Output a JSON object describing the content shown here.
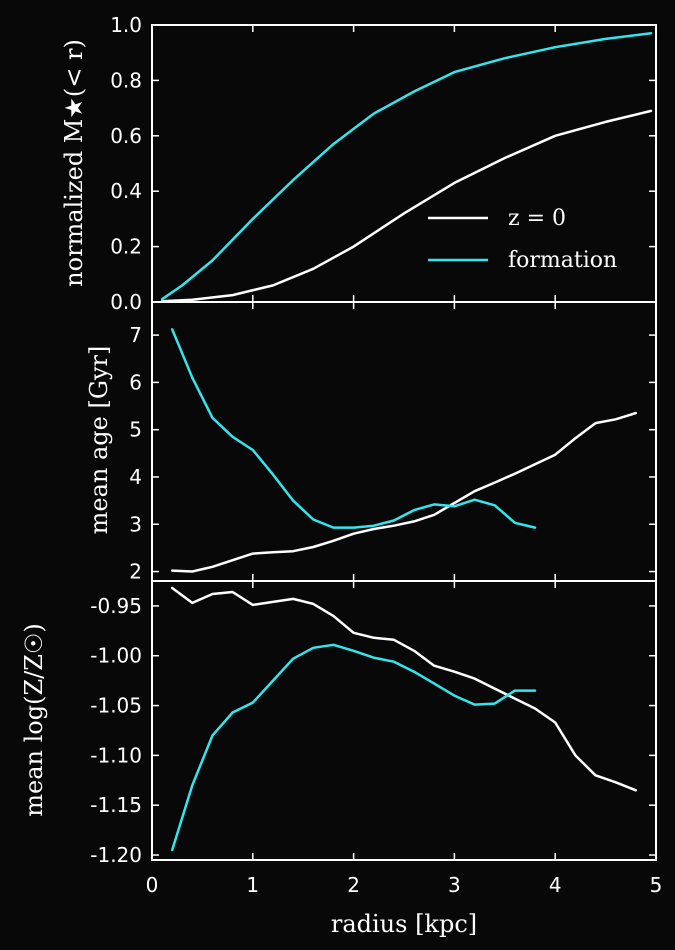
{
  "chart_data": {
    "type": "line",
    "xlabel": "radius [kpc]",
    "xlim": [
      0,
      5
    ],
    "xticks": [
      "0",
      "1",
      "2",
      "3",
      "4",
      "5"
    ],
    "colors": {
      "background": "#080808",
      "axes": "#ffffff",
      "z0": "#ffffff",
      "formation": "#33e6ee"
    },
    "legend": {
      "placement": "lower-right of top panel",
      "entries": [
        {
          "label": "z = 0",
          "color": "#ffffff"
        },
        {
          "label": "formation",
          "color": "#33e6ee"
        }
      ]
    },
    "panels": [
      {
        "ylabel": "normalized M★(< r)",
        "ylim": [
          0,
          1
        ],
        "yticks": [
          "0.0",
          "0.2",
          "0.4",
          "0.6",
          "0.8",
          "1.0"
        ],
        "ytick_values": [
          0,
          0.2,
          0.4,
          0.6,
          0.8,
          1.0
        ],
        "series": [
          {
            "name": "z = 0",
            "x": [
              0.1,
              0.4,
              0.8,
              1.2,
              1.6,
              2.0,
              2.5,
              3.0,
              3.5,
              4.0,
              4.5,
              4.95
            ],
            "y": [
              0.003,
              0.008,
              0.025,
              0.06,
              0.12,
              0.2,
              0.32,
              0.43,
              0.52,
              0.6,
              0.65,
              0.69
            ]
          },
          {
            "name": "formation",
            "x": [
              0.1,
              0.3,
              0.6,
              1.0,
              1.4,
              1.8,
              2.2,
              2.6,
              3.0,
              3.5,
              4.0,
              4.5,
              4.95
            ],
            "y": [
              0.01,
              0.06,
              0.15,
              0.3,
              0.44,
              0.57,
              0.68,
              0.76,
              0.83,
              0.88,
              0.92,
              0.95,
              0.97
            ]
          }
        ]
      },
      {
        "ylabel": "mean age [Gyr]",
        "ylim": [
          1.8,
          7.7
        ],
        "yticks": [
          "2",
          "3",
          "4",
          "5",
          "6",
          "7"
        ],
        "ytick_values": [
          2,
          3,
          4,
          5,
          6,
          7
        ],
        "series": [
          {
            "name": "z = 0",
            "x": [
              0.2,
              0.4,
              0.6,
              0.8,
              1.0,
              1.2,
              1.4,
              1.6,
              1.8,
              2.0,
              2.2,
              2.4,
              2.6,
              2.8,
              3.0,
              3.2,
              3.4,
              3.6,
              3.8,
              4.0,
              4.2,
              4.4,
              4.6,
              4.8
            ],
            "y": [
              2.02,
              2.0,
              2.1,
              2.24,
              2.38,
              2.41,
              2.43,
              2.52,
              2.65,
              2.8,
              2.9,
              2.97,
              3.06,
              3.2,
              3.45,
              3.7,
              3.88,
              4.07,
              4.27,
              4.47,
              4.82,
              5.14,
              5.22,
              5.35
            ]
          },
          {
            "name": "formation",
            "x": [
              0.2,
              0.4,
              0.6,
              0.8,
              1.0,
              1.2,
              1.4,
              1.6,
              1.8,
              2.0,
              2.2,
              2.4,
              2.6,
              2.8,
              3.0,
              3.2,
              3.4,
              3.6,
              3.8
            ],
            "y": [
              7.12,
              6.1,
              5.25,
              4.85,
              4.57,
              4.05,
              3.5,
              3.1,
              2.93,
              2.93,
              2.97,
              3.08,
              3.3,
              3.42,
              3.38,
              3.52,
              3.4,
              3.03,
              2.93
            ]
          }
        ]
      },
      {
        "ylabel": "mean log(Z/Z☉)",
        "ylim": [
          -1.205,
          -0.925
        ],
        "yticks": [
          "-0.95",
          "-1.00",
          "-1.05",
          "-1.10",
          "-1.15",
          "-1.20"
        ],
        "ytick_values": [
          -0.95,
          -1.0,
          -1.05,
          -1.1,
          -1.15,
          -1.2
        ],
        "series": [
          {
            "name": "z = 0",
            "x": [
              0.2,
              0.4,
              0.6,
              0.8,
              1.0,
              1.2,
              1.4,
              1.6,
              1.8,
              2.0,
              2.2,
              2.4,
              2.6,
              2.8,
              3.0,
              3.2,
              3.4,
              3.6,
              3.8,
              4.0,
              4.2,
              4.4,
              4.6,
              4.8
            ],
            "y": [
              -0.932,
              -0.947,
              -0.938,
              -0.936,
              -0.949,
              -0.946,
              -0.943,
              -0.948,
              -0.96,
              -0.977,
              -0.982,
              -0.984,
              -0.995,
              -1.01,
              -1.016,
              -1.023,
              -1.033,
              -1.043,
              -1.053,
              -1.067,
              -1.1,
              -1.12,
              -1.127,
              -1.135
            ]
          },
          {
            "name": "formation",
            "x": [
              0.2,
              0.4,
              0.6,
              0.8,
              1.0,
              1.2,
              1.4,
              1.6,
              1.8,
              2.0,
              2.2,
              2.4,
              2.6,
              2.8,
              3.0,
              3.2,
              3.4,
              3.6,
              3.8
            ],
            "y": [
              -1.195,
              -1.13,
              -1.08,
              -1.057,
              -1.047,
              -1.025,
              -1.003,
              -0.992,
              -0.989,
              -0.995,
              -1.002,
              -1.006,
              -1.016,
              -1.028,
              -1.04,
              -1.049,
              -1.048,
              -1.035,
              -1.035
            ]
          }
        ]
      }
    ]
  }
}
